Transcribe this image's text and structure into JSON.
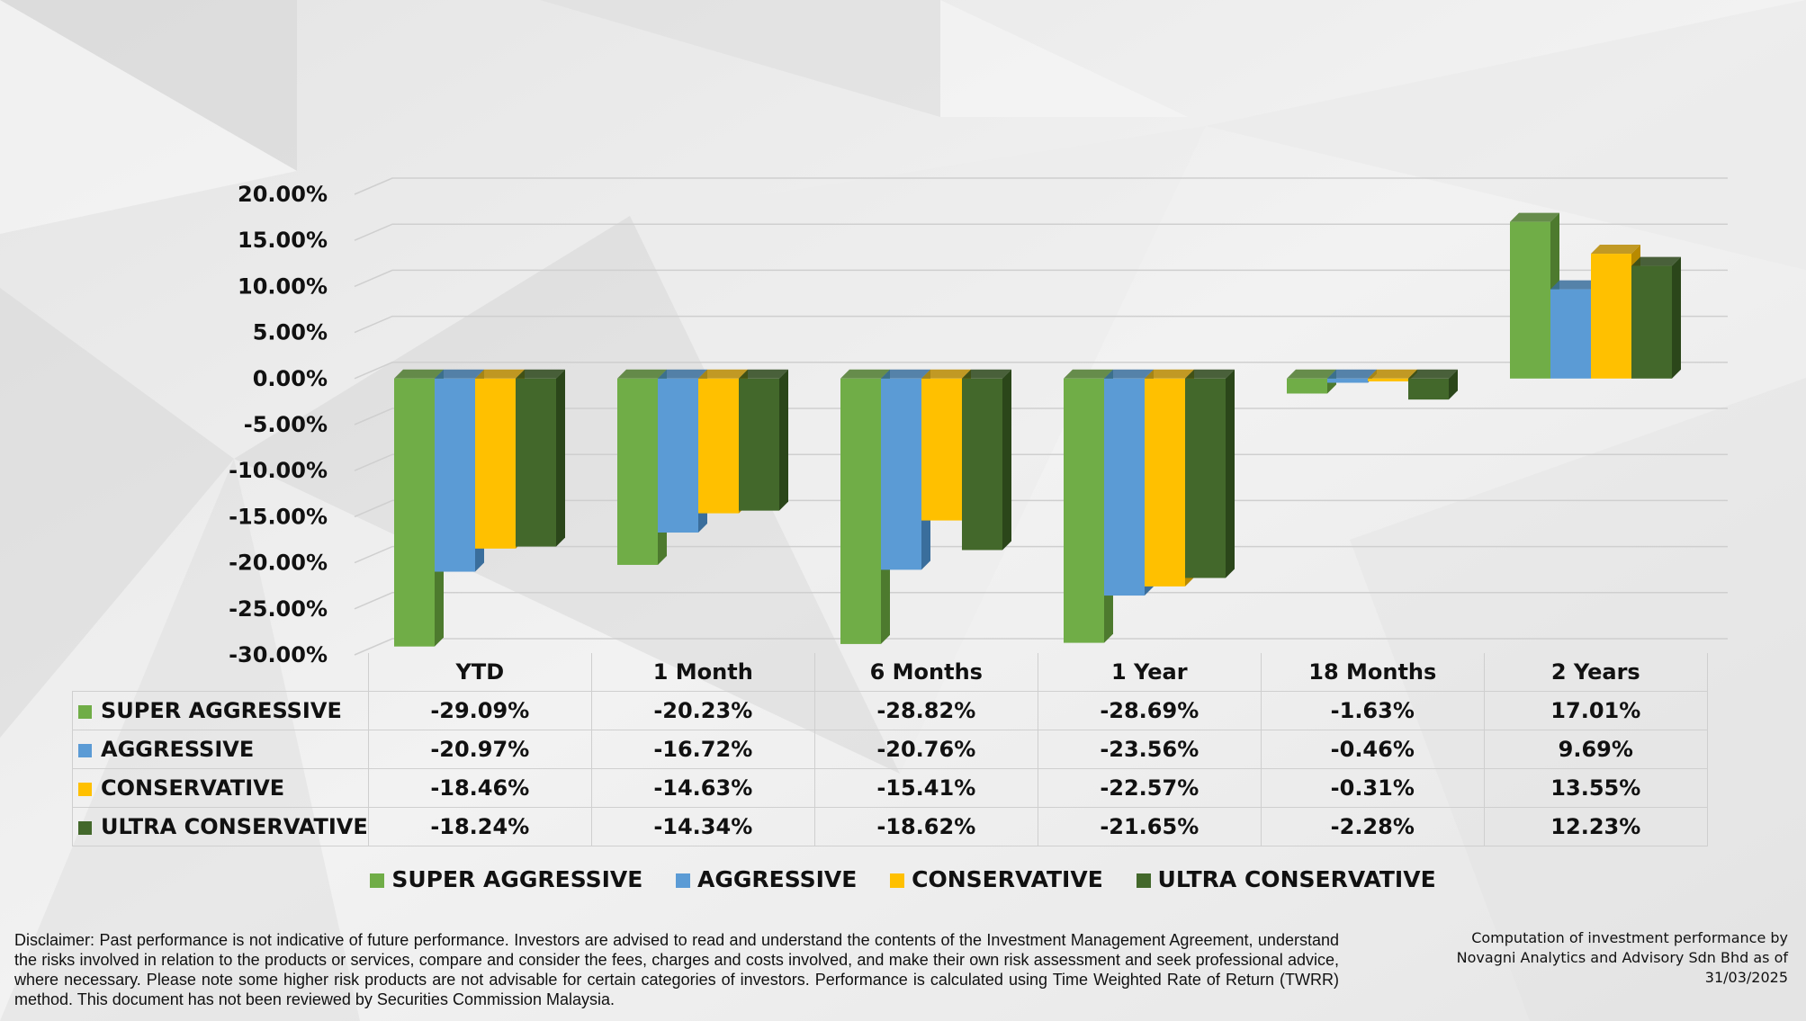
{
  "chart_data": {
    "type": "bar",
    "categories": [
      "YTD",
      "1 Month",
      "6 Months",
      "1 Year",
      "18 Months",
      "2 Years"
    ],
    "series": [
      {
        "name": "SUPER AGGRESSIVE",
        "color": "#70ad47",
        "side_color": "#4d7a2e",
        "values": [
          -29.09,
          -20.23,
          -28.82,
          -28.69,
          -1.63,
          17.01
        ],
        "labels": [
          "-29.09%",
          "-20.23%",
          "-28.82%",
          "-28.69%",
          "-1.63%",
          "17.01%"
        ]
      },
      {
        "name": "AGGRESSIVE",
        "color": "#5b9bd5",
        "side_color": "#3a6e9c",
        "values": [
          -20.97,
          -16.72,
          -20.76,
          -23.56,
          -0.46,
          9.69
        ],
        "labels": [
          "-20.97%",
          "-16.72%",
          "-20.76%",
          "-23.56%",
          "-0.46%",
          "9.69%"
        ]
      },
      {
        "name": "CONSERVATIVE",
        "color": "#ffc000",
        "side_color": "#b88a00",
        "values": [
          -18.46,
          -14.63,
          -15.41,
          -22.57,
          -0.31,
          13.55
        ],
        "labels": [
          "-18.46%",
          "-14.63%",
          "-15.41%",
          "-22.57%",
          "-0.31%",
          "13.55%"
        ]
      },
      {
        "name": "ULTRA CONSERVATIVE",
        "color": "#43682b",
        "side_color": "#2b461a",
        "values": [
          -18.24,
          -14.34,
          -18.62,
          -21.65,
          -2.28,
          12.23
        ],
        "labels": [
          "-18.24%",
          "-14.34%",
          "-18.62%",
          "-21.65%",
          "-2.28%",
          "12.23%"
        ]
      }
    ],
    "ylim": [
      -30,
      20
    ],
    "yticks": [
      20,
      15,
      10,
      5,
      0,
      -5,
      -10,
      -15,
      -20,
      -25,
      -30
    ],
    "ytick_labels": [
      "20.00%",
      "15.00%",
      "10.00%",
      "5.00%",
      "0.00%",
      "-5.00%",
      "-10.00%",
      "-15.00%",
      "-20.00%",
      "-25.00%",
      "-30.00%"
    ],
    "grid": true,
    "style": "3d-clustered-column-with-data-table",
    "legend_position": "bottom"
  },
  "footer": {
    "disclaimer": "Disclaimer: Past performance is not indicative of future performance. Investors are advised to read and understand the contents of the Investment Management Agreement, understand the risks involved in relation to the products or services, compare and consider the fees, charges and costs involved, and make their own risk assessment and seek professional advice, where necessary. Please note some higher risk products are not advisable for certain categories of investors. Performance is calculated using Time Weighted Rate of Return (TWRR) method. This document has not been reviewed by Securities Commission Malaysia.",
    "credit": "Computation of investment performance by Novagni Analytics and Advisory Sdn Bhd as of 31/03/2025"
  }
}
